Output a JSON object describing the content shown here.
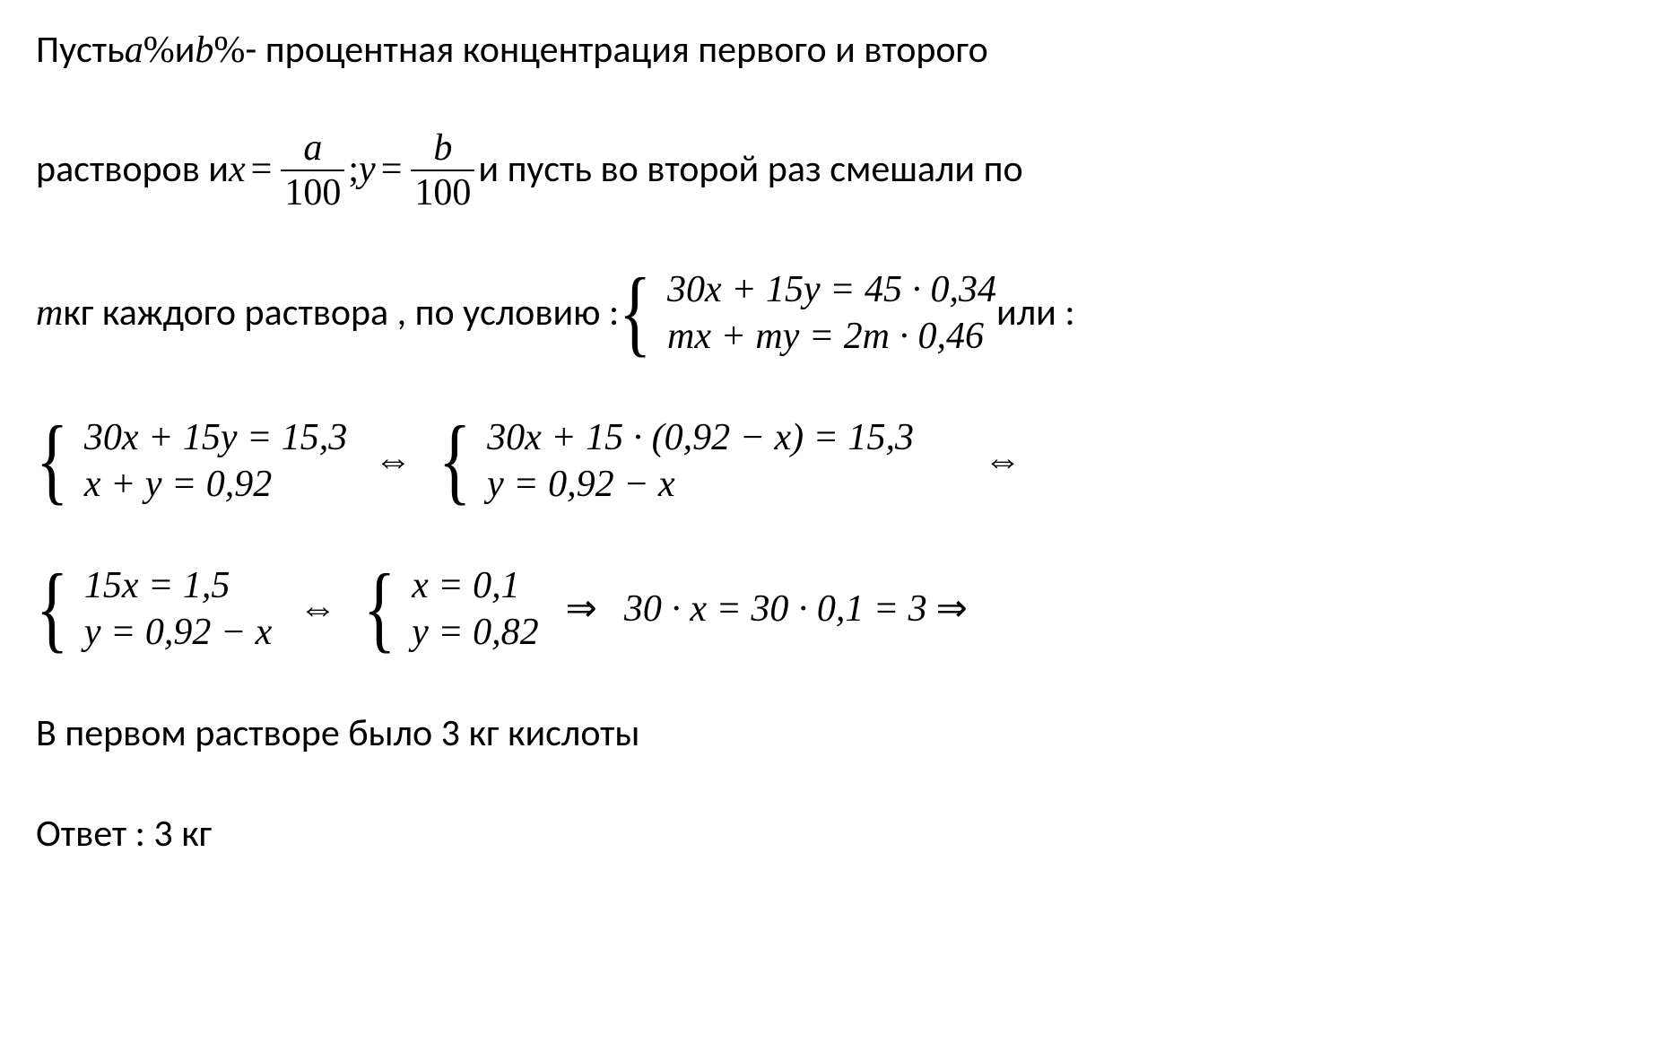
{
  "colors": {
    "text": "#000000",
    "background": "#ffffff"
  },
  "typography": {
    "body_font": "Calibri",
    "math_font": "Cambria Math",
    "body_size_pt": 32,
    "math_size_pt": 32
  },
  "line1": {
    "t1": "Пусть  ",
    "a": "a",
    "pct1": "%",
    "t2": "   и   ",
    "b": "b",
    "pct2": "%",
    "t3": " - процентная концентрация первого и второго"
  },
  "line2": {
    "t1": "растворов и  ",
    "x": "x",
    "eq1": " = ",
    "frac1_num": "a",
    "frac1_den": "100",
    "sep": "  ;  ",
    "y": "y",
    "eq2": " = ",
    "frac2_num": "b",
    "frac2_den": "100",
    "t2": "   и пусть во второй раз смешали по"
  },
  "line3": {
    "m": "m",
    "t1": "  кг каждого раствора ,   по условию : ",
    "sys": {
      "r1": "30x + 15y = 45 · 0,34",
      "r2": "mx + my = 2m · 0,46"
    },
    "t2": "  или :"
  },
  "line4": {
    "sysA": {
      "r1": "30x + 15y = 15,3",
      "r2": "  x + y = 0,92"
    },
    "iff1": "⇔",
    "sysB": {
      "r1": "30x + 15 · (0,92 − x) = 15,3",
      "r2": "  y = 0,92 − x"
    },
    "iff2": "⇔"
  },
  "line5": {
    "sysA": {
      "r1": "  15x = 1,5",
      "r2": "y = 0,92 − x"
    },
    "iff1": "⇔",
    "sysB": {
      "r1": "x = 0,1",
      "r2": "y = 0,82"
    },
    "imp1": "⇒",
    "tail": "30  · x = 30  · 0,1 = 3   ",
    "imp2": "⇒"
  },
  "line6": {
    "t": " В первом растворе было 3 кг кислоты"
  },
  "line7": {
    "t": "Ответ : 3 кг"
  }
}
